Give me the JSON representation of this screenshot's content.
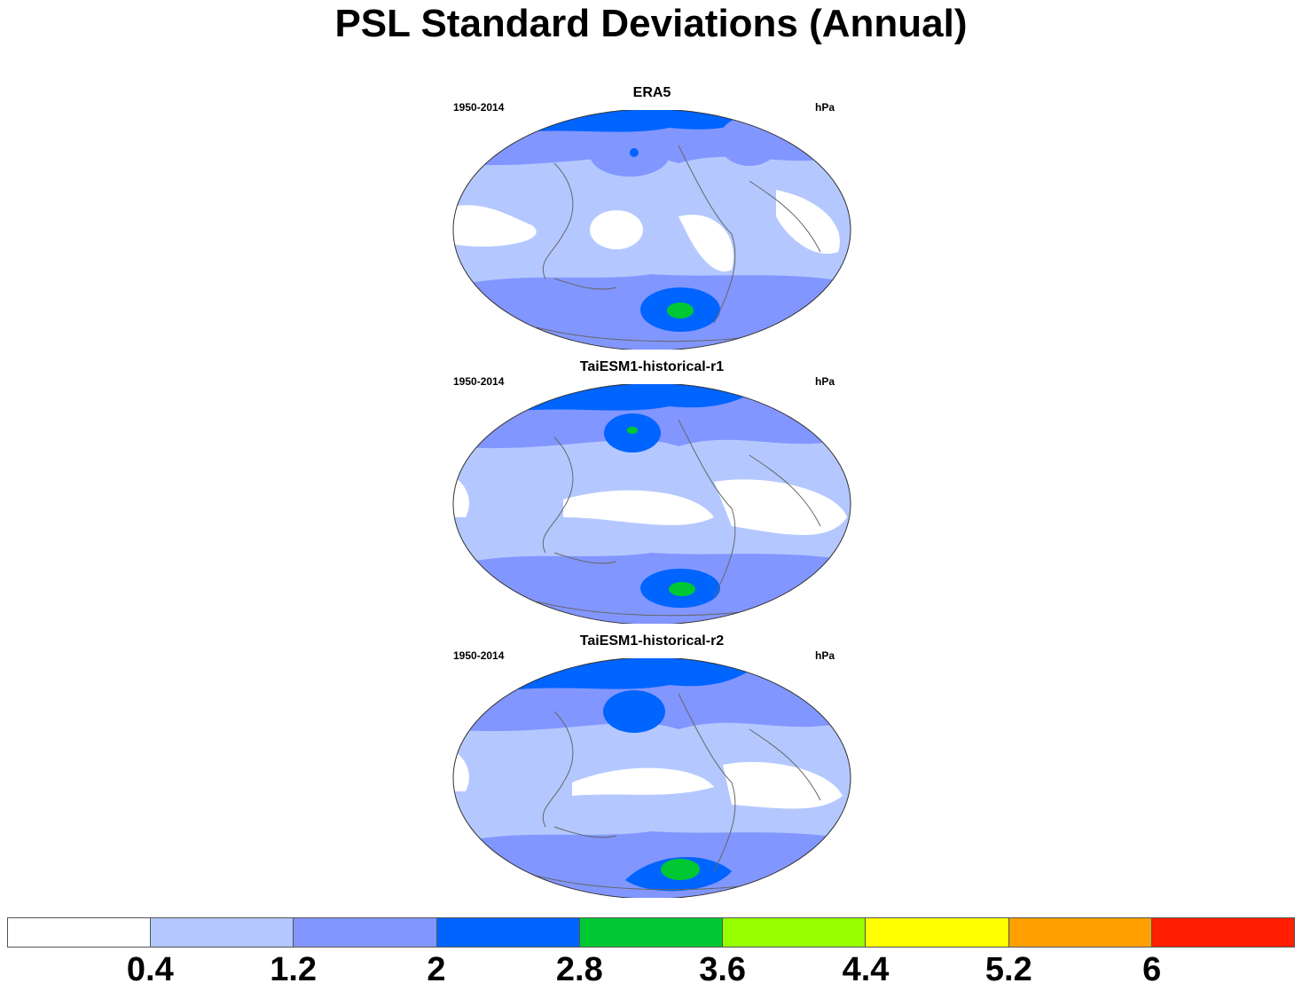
{
  "title": "PSL Standard Deviations (Annual)",
  "panels": [
    {
      "name": "ERA5",
      "period": "1950-2014",
      "units": "hPa"
    },
    {
      "name": "TaiESM1-historical-r1",
      "period": "1950-2014",
      "units": "hPa"
    },
    {
      "name": "TaiESM1-historical-r2",
      "period": "1950-2014",
      "units": "hPa"
    }
  ],
  "colorbar": {
    "colors": [
      "#ffffff",
      "#b4c8ff",
      "#8296ff",
      "#0064ff",
      "#00c832",
      "#96ff00",
      "#ffff00",
      "#ffa000",
      "#ff1e00"
    ],
    "labels": [
      "0.4",
      "1.2",
      "2",
      "2.8",
      "3.6",
      "4.4",
      "5.2",
      "6"
    ]
  }
}
